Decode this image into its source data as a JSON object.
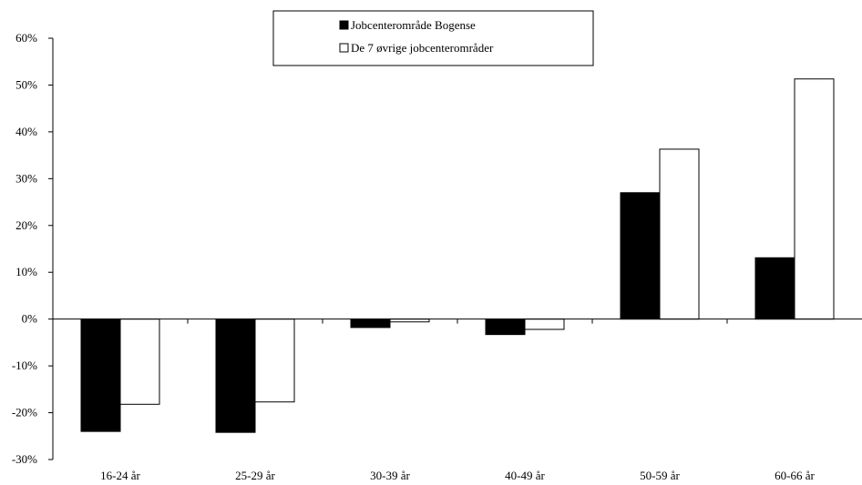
{
  "chart_data": {
    "type": "bar",
    "categories": [
      "16-24 år",
      "25-29 år",
      "30-39 år",
      "40-49 år",
      "50-59 år",
      "60-66 år"
    ],
    "series": [
      {
        "name": "Jobcenterområde Bogense",
        "color": "#000000",
        "values": [
          -24,
          -24.2,
          -1.8,
          -3.3,
          27,
          13.1
        ]
      },
      {
        "name": "De 7 øvrige jobcenterområder",
        "color": "#ffffff",
        "values": [
          -18.2,
          -17.7,
          -0.6,
          -2.2,
          36.3,
          51.3
        ]
      }
    ],
    "ylim": [
      -30,
      60
    ],
    "yticks": [
      60,
      50,
      40,
      30,
      20,
      10,
      0,
      -10,
      -20,
      -30
    ],
    "ytick_labels": [
      "60%",
      "50%",
      "40%",
      "30%",
      "20%",
      "10%",
      "0%",
      "-10%",
      "-20%",
      "-30%"
    ],
    "title": "",
    "xlabel": "",
    "ylabel": "",
    "legend_position": "top-center",
    "grid": false
  }
}
